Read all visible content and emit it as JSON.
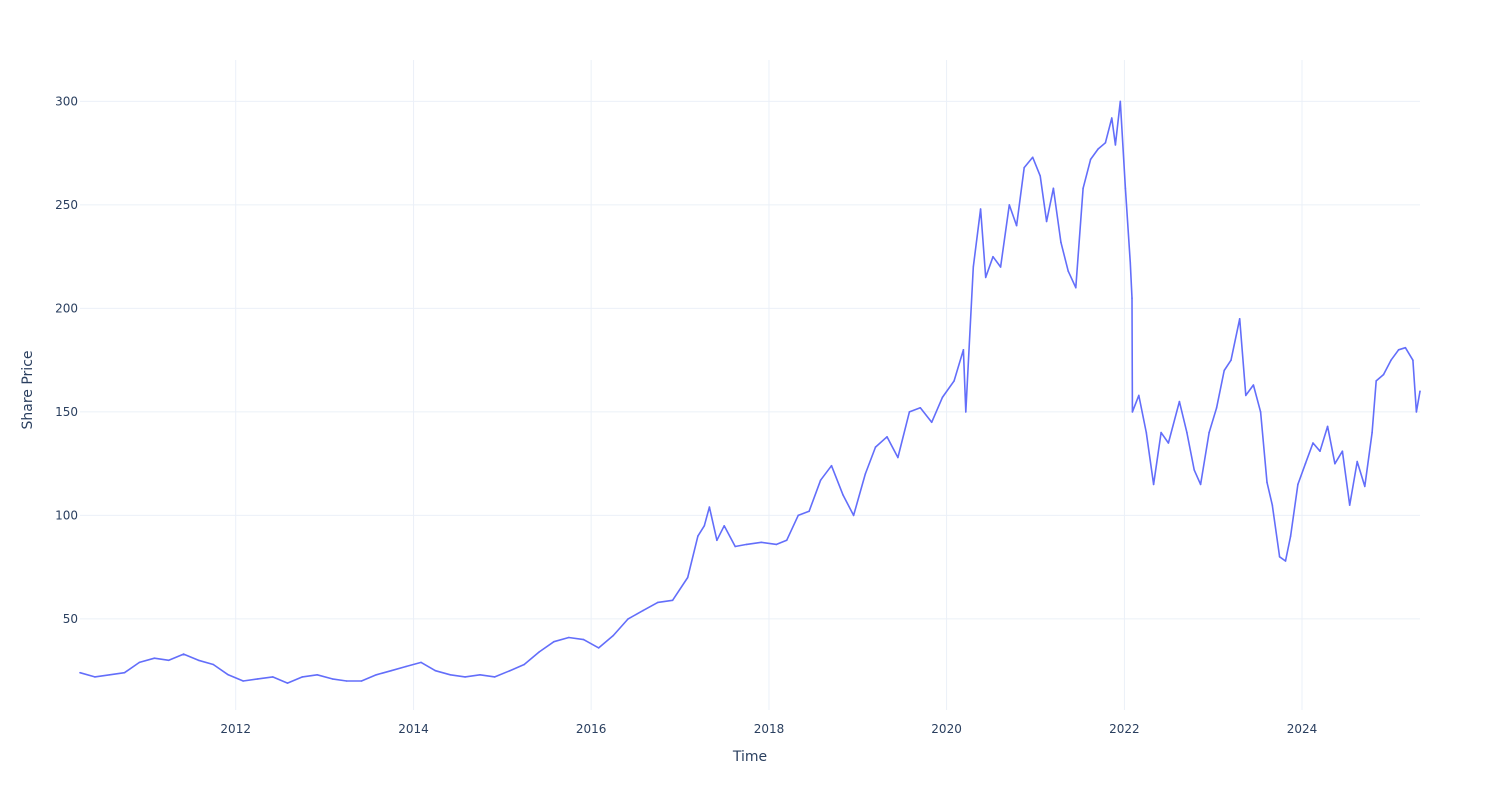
{
  "chart_data": {
    "type": "line",
    "xlabel": "Time",
    "ylabel": "Share Price",
    "xlim": [
      "2010-04-01",
      "2025-04-30"
    ],
    "ylim": [
      6,
      320
    ],
    "grid": true,
    "x_ticks": [
      {
        "value": "2012-01-01",
        "label": "2012"
      },
      {
        "value": "2014-01-01",
        "label": "2014"
      },
      {
        "value": "2016-01-01",
        "label": "2016"
      },
      {
        "value": "2018-01-01",
        "label": "2018"
      },
      {
        "value": "2020-01-01",
        "label": "2020"
      },
      {
        "value": "2022-01-01",
        "label": "2022"
      },
      {
        "value": "2024-01-01",
        "label": "2024"
      }
    ],
    "y_ticks": [
      {
        "value": 50,
        "label": "50"
      },
      {
        "value": 100,
        "label": "100"
      },
      {
        "value": 150,
        "label": "150"
      },
      {
        "value": 200,
        "label": "200"
      },
      {
        "value": 250,
        "label": "250"
      },
      {
        "value": 300,
        "label": "300"
      }
    ],
    "series": [
      {
        "color": "#636efa",
        "x": [
          "2010-04-01",
          "2010-06-01",
          "2010-08-01",
          "2010-10-01",
          "2010-12-01",
          "2011-02-01",
          "2011-04-01",
          "2011-06-01",
          "2011-08-01",
          "2011-10-01",
          "2011-12-01",
          "2012-02-01",
          "2012-04-01",
          "2012-06-01",
          "2012-08-01",
          "2012-10-01",
          "2012-12-01",
          "2013-02-01",
          "2013-04-01",
          "2013-06-01",
          "2013-08-01",
          "2013-10-01",
          "2013-12-01",
          "2014-02-01",
          "2014-04-01",
          "2014-06-01",
          "2014-08-01",
          "2014-10-01",
          "2014-12-01",
          "2015-02-01",
          "2015-04-01",
          "2015-06-01",
          "2015-08-01",
          "2015-10-01",
          "2015-12-01",
          "2016-02-01",
          "2016-04-01",
          "2016-06-01",
          "2016-08-01",
          "2016-10-01",
          "2016-12-01",
          "2017-02-01",
          "2017-03-15",
          "2017-04-10",
          "2017-05-01",
          "2017-06-01",
          "2017-07-01",
          "2017-08-15",
          "2017-10-01",
          "2017-12-01",
          "2018-02-01",
          "2018-03-15",
          "2018-05-01",
          "2018-06-15",
          "2018-08-01",
          "2018-09-15",
          "2018-11-01",
          "2018-12-15",
          "2019-02-01",
          "2019-03-15",
          "2019-05-01",
          "2019-06-15",
          "2019-08-01",
          "2019-09-15",
          "2019-11-01",
          "2019-12-15",
          "2020-02-01",
          "2020-03-10",
          "2020-03-20",
          "2020-04-20",
          "2020-05-20",
          "2020-06-10",
          "2020-07-10",
          "2020-08-10",
          "2020-09-15",
          "2020-10-15",
          "2020-11-15",
          "2020-12-20",
          "2021-01-20",
          "2021-02-15",
          "2021-03-15",
          "2021-04-15",
          "2021-05-15",
          "2021-06-15",
          "2021-07-15",
          "2021-08-15",
          "2021-09-15",
          "2021-10-15",
          "2021-11-10",
          "2021-11-25",
          "2021-12-15",
          "2022-01-05",
          "2022-01-25",
          "2022-02-01",
          "2022-02-03",
          "2022-03-01",
          "2022-04-01",
          "2022-05-01",
          "2022-06-01",
          "2022-07-01",
          "2022-08-15",
          "2022-09-15",
          "2022-10-15",
          "2022-11-10",
          "2022-12-15",
          "2023-01-15",
          "2023-02-15",
          "2023-03-15",
          "2023-04-20",
          "2023-05-15",
          "2023-06-15",
          "2023-07-15",
          "2023-08-10",
          "2023-09-01",
          "2023-10-01",
          "2023-10-25",
          "2023-11-15",
          "2023-12-15",
          "2024-01-15",
          "2024-02-15",
          "2024-03-15",
          "2024-04-15",
          "2024-05-15",
          "2024-06-15",
          "2024-07-15",
          "2024-08-15",
          "2024-09-15",
          "2024-10-15",
          "2024-11-01",
          "2024-12-01",
          "2025-01-01",
          "2025-02-01",
          "2025-03-01",
          "2025-04-01",
          "2025-04-15",
          "2025-04-30"
        ],
        "y": [
          24,
          22,
          23,
          24,
          29,
          31,
          30,
          33,
          30,
          28,
          23,
          20,
          21,
          22,
          19,
          22,
          23,
          21,
          20,
          20,
          23,
          25,
          27,
          29,
          25,
          23,
          22,
          23,
          22,
          25,
          28,
          34,
          39,
          41,
          40,
          36,
          42,
          50,
          54,
          58,
          59,
          70,
          90,
          95,
          104,
          88,
          95,
          85,
          86,
          87,
          86,
          88,
          100,
          102,
          117,
          124,
          110,
          100,
          120,
          133,
          138,
          128,
          150,
          152,
          145,
          157,
          165,
          180,
          150,
          220,
          248,
          215,
          225,
          220,
          250,
          240,
          268,
          273,
          264,
          242,
          258,
          232,
          218,
          210,
          258,
          272,
          277,
          280,
          292,
          279,
          300,
          258,
          222,
          205,
          150,
          158,
          140,
          115,
          140,
          135,
          155,
          140,
          122,
          115,
          140,
          152,
          170,
          175,
          195,
          158,
          163,
          150,
          116,
          105,
          80,
          78,
          90,
          115,
          125,
          135,
          131,
          143,
          125,
          131,
          105,
          126,
          114,
          140,
          165,
          168,
          175,
          180,
          181,
          175,
          150,
          160
        ]
      }
    ]
  }
}
